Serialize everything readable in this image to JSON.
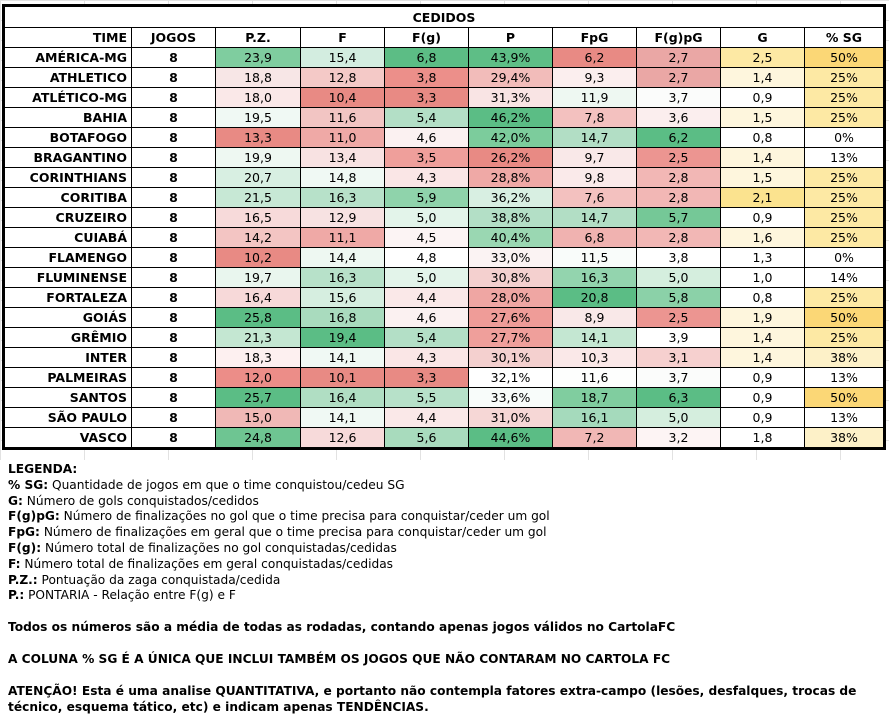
{
  "table_title": "CEDIDOS",
  "headers": [
    "TIME",
    "JOGOS",
    "P.Z.",
    "F",
    "F(g)",
    "P",
    "FpG",
    "F(g)pG",
    "G",
    "% SG"
  ],
  "rows": [
    [
      "AMÉRICA-MG",
      "8",
      "23,9",
      "15,4",
      "6,8",
      "43,9%",
      "6,2",
      "2,7",
      "2,5",
      "50%"
    ],
    [
      "ATHLETICO",
      "8",
      "18,8",
      "12,8",
      "3,8",
      "29,4%",
      "9,3",
      "2,7",
      "1,4",
      "25%"
    ],
    [
      "ATLÉTICO-MG",
      "8",
      "18,0",
      "10,4",
      "3,3",
      "31,3%",
      "11,9",
      "3,7",
      "0,9",
      "25%"
    ],
    [
      "BAHIA",
      "8",
      "19,5",
      "11,6",
      "5,4",
      "46,2%",
      "7,8",
      "3,6",
      "1,5",
      "25%"
    ],
    [
      "BOTAFOGO",
      "8",
      "13,3",
      "11,0",
      "4,6",
      "42,0%",
      "14,7",
      "6,2",
      "0,8",
      "0%"
    ],
    [
      "BRAGANTINO",
      "8",
      "19,9",
      "13,4",
      "3,5",
      "26,2%",
      "9,7",
      "2,5",
      "1,4",
      "13%"
    ],
    [
      "CORINTHIANS",
      "8",
      "20,7",
      "14,8",
      "4,3",
      "28,8%",
      "9,8",
      "2,8",
      "1,5",
      "25%"
    ],
    [
      "CORITIBA",
      "8",
      "21,5",
      "16,3",
      "5,9",
      "36,2%",
      "7,6",
      "2,8",
      "2,1",
      "25%"
    ],
    [
      "CRUZEIRO",
      "8",
      "16,5",
      "12,9",
      "5,0",
      "38,8%",
      "14,7",
      "5,7",
      "0,9",
      "25%"
    ],
    [
      "CUIABÁ",
      "8",
      "14,2",
      "11,1",
      "4,5",
      "40,4%",
      "6,8",
      "2,8",
      "1,6",
      "25%"
    ],
    [
      "FLAMENGO",
      "8",
      "10,2",
      "14,4",
      "4,8",
      "33,0%",
      "11,5",
      "3,8",
      "1,3",
      "0%"
    ],
    [
      "FLUMINENSE",
      "8",
      "19,7",
      "16,3",
      "5,0",
      "30,8%",
      "16,3",
      "5,0",
      "1,0",
      "14%"
    ],
    [
      "FORTALEZA",
      "8",
      "16,4",
      "15,6",
      "4,4",
      "28,0%",
      "20,8",
      "5,8",
      "0,8",
      "25%"
    ],
    [
      "GOIÁS",
      "8",
      "25,8",
      "16,8",
      "4,6",
      "27,6%",
      "8,9",
      "2,5",
      "1,9",
      "50%"
    ],
    [
      "GRÊMIO",
      "8",
      "21,3",
      "19,4",
      "5,4",
      "27,7%",
      "14,1",
      "3,9",
      "1,4",
      "25%"
    ],
    [
      "INTER",
      "8",
      "18,3",
      "14,1",
      "4,3",
      "30,1%",
      "10,3",
      "3,1",
      "1,4",
      "38%"
    ],
    [
      "PALMEIRAS",
      "8",
      "12,0",
      "10,1",
      "3,3",
      "32,1%",
      "11,6",
      "3,7",
      "0,9",
      "13%"
    ],
    [
      "SANTOS",
      "8",
      "25,7",
      "16,4",
      "5,5",
      "33,6%",
      "18,7",
      "6,3",
      "0,9",
      "50%"
    ],
    [
      "SÃO PAULO",
      "8",
      "15,0",
      "14,1",
      "4,4",
      "31,0%",
      "16,1",
      "5,0",
      "0,9",
      "13%"
    ],
    [
      "VASCO",
      "8",
      "24,8",
      "12,6",
      "5,6",
      "44,6%",
      "7,2",
      "3,2",
      "1,8",
      "38%"
    ]
  ],
  "cell_colors": [
    [
      "#fff",
      "#fff",
      "#7fcd9f",
      "#d3ede0",
      "#5cbd85",
      "#5ebe86",
      "#e88a84",
      "#eaa7a5",
      "#fde9a4",
      "#fbd776"
    ],
    [
      "#fff",
      "#fff",
      "#f7e6e6",
      "#f4c9c7",
      "#ec8f8a",
      "#f2bcba",
      "#fbeeee",
      "#eaa7a5",
      "#fef6dd",
      "#fde9a4"
    ],
    [
      "#fff",
      "#fff",
      "#fae8e8",
      "#e88a84",
      "#e88a84",
      "#f9e4e4",
      "#eef8f2",
      "#fbfcfb",
      "#fff",
      "#fde9a4"
    ],
    [
      "#fff",
      "#fff",
      "#f0f9f4",
      "#f2c5c3",
      "#b3dfc6",
      "#5bbd85",
      "#f3c1bf",
      "#fbeeee",
      "#fef6dd",
      "#fde9a4"
    ],
    [
      "#fff",
      "#fff",
      "#e88a84",
      "#efa9a6",
      "#fbf1f1",
      "#7ccc9c",
      "#b2dec5",
      "#5bbd85",
      "#fff",
      "#fff"
    ],
    [
      "#fff",
      "#fff",
      "#eef8f2",
      "#f8e2e2",
      "#ef9f9b",
      "#e88a84",
      "#f9e8e8",
      "#ec9591",
      "#fef6dd",
      "#fff"
    ],
    [
      "#fff",
      "#fff",
      "#d8efe2",
      "#f0f9f4",
      "#fae6e6",
      "#efa9a6",
      "#faeaea",
      "#f2b7b5",
      "#fef6dd",
      "#fde9a4"
    ],
    [
      "#fff",
      "#fff",
      "#c7e8d5",
      "#b7e1c9",
      "#8fd3ab",
      "#d8efe2",
      "#f3c1bf",
      "#f2b7b5",
      "#fbe38f",
      "#fde9a4"
    ],
    [
      "#fff",
      "#fff",
      "#f7dada",
      "#f7e2e2",
      "#e3f4ea",
      "#b3dfc6",
      "#b2dec5",
      "#75c897",
      "#fff",
      "#fde9a4"
    ],
    [
      "#fff",
      "#fff",
      "#f3c5c3",
      "#efa9a6",
      "#fcf4f4",
      "#9ad7b2",
      "#f0b2b0",
      "#f2b7b5",
      "#fef6dd",
      "#fde9a4"
    ],
    [
      "#fff",
      "#fff",
      "#e88a84",
      "#eef8f2",
      "#fff",
      "#fbf3f3",
      "#f9fcfa",
      "#fff",
      "#fff",
      "#fff"
    ],
    [
      "#fff",
      "#fff",
      "#e9f6ee",
      "#b7e1c9",
      "#e3f4ea",
      "#f4d0cf",
      "#93d4ae",
      "#d5eede",
      "#fff",
      "#fff"
    ],
    [
      "#fff",
      "#fff",
      "#f7d9d9",
      "#d6eee0",
      "#fae8e8",
      "#efa6a3",
      "#5bbd85",
      "#8bd1a8",
      "#fff",
      "#fde9a4"
    ],
    [
      "#fff",
      "#fff",
      "#5bbd85",
      "#a9dbbe",
      "#fbf1f1",
      "#ef9c98",
      "#f9e8e8",
      "#ec9591",
      "#fef6dd",
      "#fbd776"
    ],
    [
      "#fff",
      "#fff",
      "#c4e7d2",
      "#5bbd85",
      "#b3dfc6",
      "#ef9f9b",
      "#c4e7d2",
      "#fff",
      "#fef6dd",
      "#fde9a4"
    ],
    [
      "#fff",
      "#fff",
      "#fdf0f0",
      "#f0f9f4",
      "#fae6e6",
      "#f4d0cf",
      "#fae8e8",
      "#f6d0cf",
      "#fef6dd",
      "#fdf1c8"
    ],
    [
      "#fff",
      "#fff",
      "#ec8d88",
      "#e88a84",
      "#e88a84",
      "#fff",
      "#fdfefd",
      "#fbfcfb",
      "#fff",
      "#fff"
    ],
    [
      "#fff",
      "#fff",
      "#5bbd85",
      "#b0dec3",
      "#b7e1c9",
      "#f8fcfa",
      "#80cd9f",
      "#5bbd85",
      "#fff",
      "#fbd776"
    ],
    [
      "#fff",
      "#fff",
      "#f0b8b6",
      "#f0f9f4",
      "#fae8e8",
      "#f6d7d6",
      "#a5dabc",
      "#d5eede",
      "#fff",
      "#fff"
    ],
    [
      "#fff",
      "#fff",
      "#6ec592",
      "#f7dada",
      "#a8dbbd",
      "#5bbd85",
      "#f1b7b5",
      "#fdf4f4",
      "#fff",
      "#fdf1c8"
    ]
  ],
  "legend": {
    "title": "LEGENDA:",
    "items": [
      {
        "key": "% SG:",
        "text": "Quantidade de jogos em que o time conquistou/cedeu SG"
      },
      {
        "key": "G:",
        "text": "Número de gols conquistados/cedidos"
      },
      {
        "key": "F(g)pG:",
        "text": "Número de finalizações no gol que o time precisa para conquistar/ceder um gol"
      },
      {
        "key": "FpG:",
        "text": "Número de finalizações em geral que o time precisa para conquistar/ceder um gol"
      },
      {
        "key": "F(g):",
        "text": "Número total de finalizações no gol conquistadas/cedidas"
      },
      {
        "key": "F:",
        "text": "Número total de finalizações em geral conquistadas/cedidas"
      },
      {
        "key": "P.Z.:",
        "text": "Pontuação da zaga conquistada/cedida"
      },
      {
        "key": "P.:",
        "text": "PONTARIA - Relação entre F(g) e F"
      }
    ]
  },
  "notes": {
    "averages": "Todos os números são a média de todas as rodadas, contando apenas jogos válidos no CartolaFC",
    "sg_column": "A COLUNA % SG É A ÚNICA QUE INCLUI TAMBÉM OS JOGOS QUE NÃO CONTARAM NO CARTOLA FC",
    "warning_label": "ATENÇÃO!",
    "warning_text": "Esta é uma analise QUANTITATIVA, e portanto não contempla fatores extra-campo (lesões, desfalques, trocas de técnico, esquema tático, etc) e indicam apenas TENDÊNCIAS."
  }
}
